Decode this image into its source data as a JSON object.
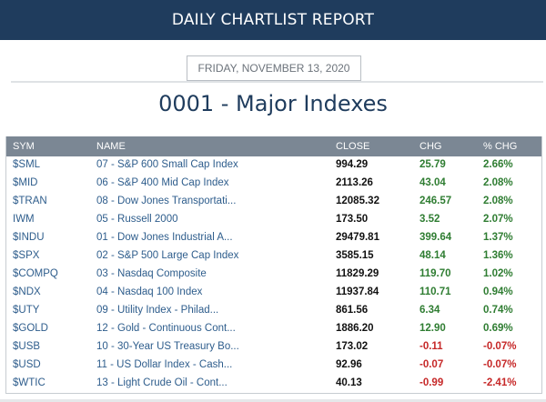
{
  "banner": {
    "title": "DAILY CHARTLIST REPORT"
  },
  "report": {
    "date": "FRIDAY, NOVEMBER 13, 2020",
    "title": "0001 - Major Indexes"
  },
  "table": {
    "headers": {
      "sym": "SYM",
      "name": "NAME",
      "close": "CLOSE",
      "chg": "CHG",
      "pct": "% CHG"
    },
    "rows": [
      {
        "sym": "$SML",
        "name": "07 - S&P 600 Small Cap Index",
        "close": "994.29",
        "chg": "25.79",
        "pct": "2.66%",
        "dir": "up"
      },
      {
        "sym": "$MID",
        "name": "06 - S&P 400 Mid Cap Index",
        "close": "2113.26",
        "chg": "43.04",
        "pct": "2.08%",
        "dir": "up"
      },
      {
        "sym": "$TRAN",
        "name": "08 - Dow Jones Transportati...",
        "close": "12085.32",
        "chg": "246.57",
        "pct": "2.08%",
        "dir": "up"
      },
      {
        "sym": "IWM",
        "name": "05 - Russell 2000",
        "close": "173.50",
        "chg": "3.52",
        "pct": "2.07%",
        "dir": "up"
      },
      {
        "sym": "$INDU",
        "name": "01 - Dow Jones Industrial A...",
        "close": "29479.81",
        "chg": "399.64",
        "pct": "1.37%",
        "dir": "up"
      },
      {
        "sym": "$SPX",
        "name": "02 - S&P 500 Large Cap Index",
        "close": "3585.15",
        "chg": "48.14",
        "pct": "1.36%",
        "dir": "up"
      },
      {
        "sym": "$COMPQ",
        "name": "03 - Nasdaq Composite",
        "close": "11829.29",
        "chg": "119.70",
        "pct": "1.02%",
        "dir": "up"
      },
      {
        "sym": "$NDX",
        "name": "04 - Nasdaq 100 Index",
        "close": "11937.84",
        "chg": "110.71",
        "pct": "0.94%",
        "dir": "up"
      },
      {
        "sym": "$UTY",
        "name": "09 - Utility Index - Philad...",
        "close": "861.56",
        "chg": "6.34",
        "pct": "0.74%",
        "dir": "up"
      },
      {
        "sym": "$GOLD",
        "name": "12 - Gold - Continuous Cont...",
        "close": "1886.20",
        "chg": "12.90",
        "pct": "0.69%",
        "dir": "up"
      },
      {
        "sym": "$USB",
        "name": "10 - 30-Year US Treasury Bo...",
        "close": "173.02",
        "chg": "-0.11",
        "pct": "-0.07%",
        "dir": "down"
      },
      {
        "sym": "$USD",
        "name": "11 - US Dollar Index - Cash...",
        "close": "92.96",
        "chg": "-0.07",
        "pct": "-0.07%",
        "dir": "down"
      },
      {
        "sym": "$WTIC",
        "name": "13 - Light Crude Oil - Cont...",
        "close": "40.13",
        "chg": "-0.99",
        "pct": "-2.41%",
        "dir": "down"
      }
    ]
  },
  "colors": {
    "banner_bg": "#1f3c5d",
    "header_bg": "#7b8794",
    "positive": "#2f7d32",
    "negative": "#c62828",
    "link": "#2e5d8c"
  }
}
